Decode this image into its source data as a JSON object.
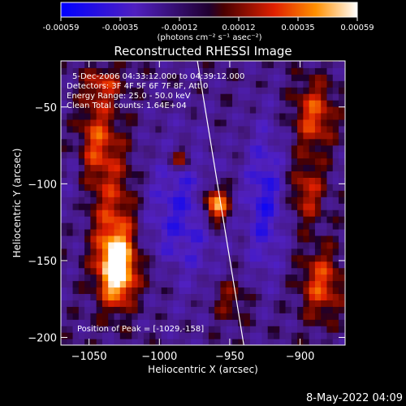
{
  "colorbar": {
    "ticks": [
      "-0.00059",
      "-0.00035",
      "-0.00012",
      "0.00012",
      "0.00035",
      "0.00059"
    ],
    "unit": "(photons cm⁻² s⁻¹ asec⁻²)"
  },
  "chart_data": {
    "type": "heatmap",
    "title": "Reconstructed RHESSI Image",
    "xlabel": "Heliocentric X (arcsec)",
    "ylabel": "Heliocentric Y (arcsec)",
    "xlim": [
      -1070,
      -868
    ],
    "ylim": [
      -205,
      -20
    ],
    "xticks": [
      -1050,
      -1000,
      -950,
      -900
    ],
    "xtick_labels": [
      "−1050",
      "−1000",
      "−950",
      "−900"
    ],
    "yticks": [
      -50,
      -100,
      -150,
      -200
    ],
    "ytick_labels": [
      "−50",
      "−100",
      "−150",
      "−200"
    ],
    "color_range": [
      -0.00059,
      0.00059
    ],
    "annotations": {
      "time": "5-Dec-2006 04:33:12.000 to 04:39:12.000",
      "detectors": "Detectors: 3F 4F 5F 6F 7F 8F, Att 0",
      "energy": "Energy Range: 25.0 - 50.0 keV",
      "clean": "Clean     Total counts: 1.64E+04",
      "peak": "Position of Peak = [-1029,-158]"
    },
    "sources": [
      {
        "x": -1030,
        "y": -155,
        "value": 0.00059
      },
      {
        "x": -960,
        "y": -113,
        "value": 0.0005
      },
      {
        "x": -985,
        "y": -83,
        "value": 0.00025
      },
      {
        "x": -890,
        "y": -55,
        "value": 0.0003
      },
      {
        "x": -885,
        "y": -165,
        "value": 0.0003
      }
    ],
    "limb": [
      [
        -973,
        -20
      ],
      [
        -940,
        -205
      ]
    ]
  },
  "footer": {
    "date": "8-May-2022 04:09"
  }
}
